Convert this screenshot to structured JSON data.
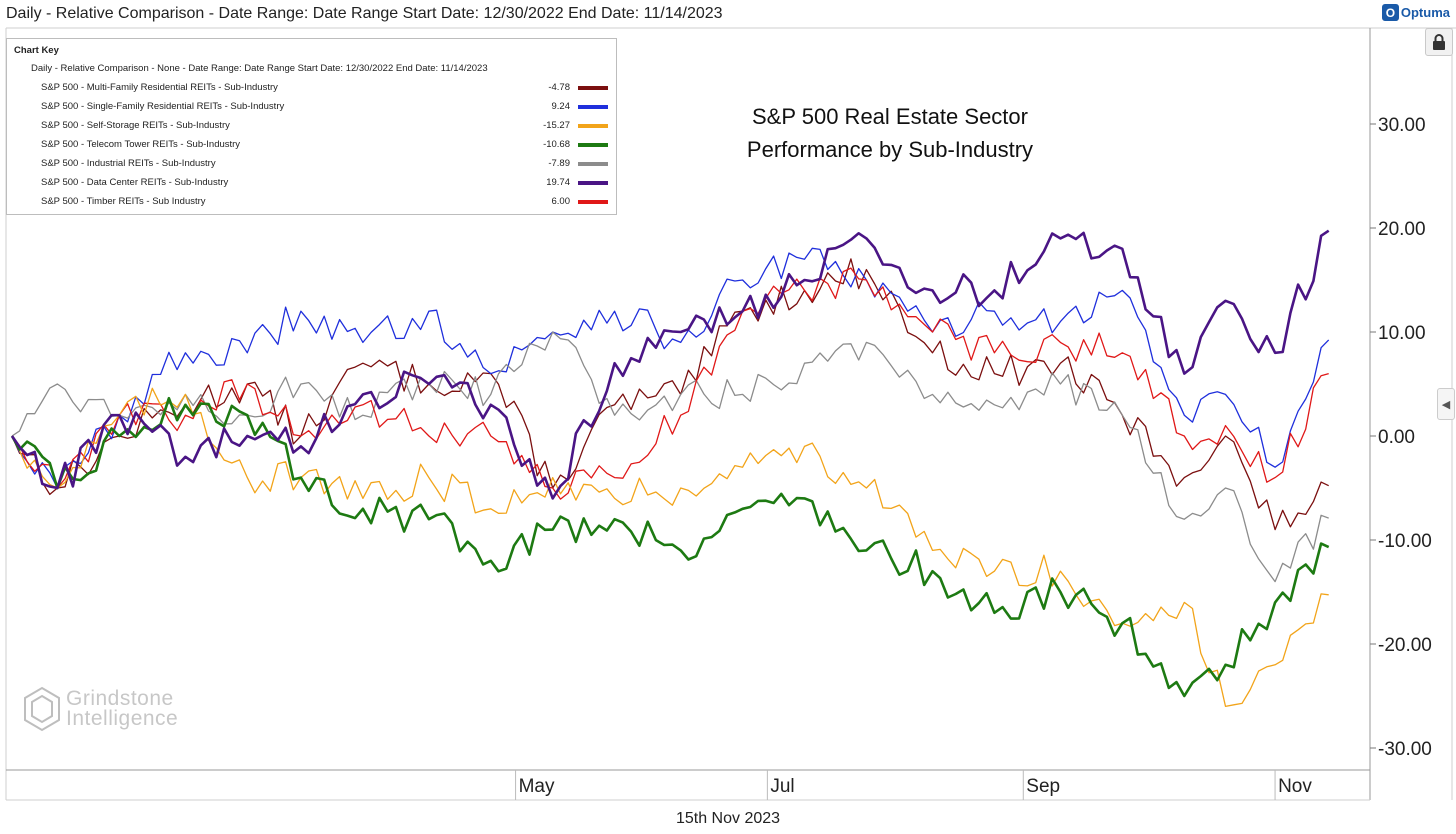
{
  "header": {
    "title": "Daily - Relative Comparison - Date Range: Date Range  Start Date: 12/30/2022  End Date: 11/14/2023",
    "brand": "Optuma",
    "brand_icon": "optuma-logo-icon"
  },
  "toolbar": {
    "lock_icon": "lock-icon",
    "side_handle_icon": "chevron-left-icon"
  },
  "chart_key": {
    "heading": "Chart Key",
    "subtitle": "Daily - Relative Comparison - None - Date Range: Date Range  Start Date: 12/30/2022  End Date: 11/14/2023",
    "entries": [
      {
        "label": "S&P 500 - Multi-Family Residential REITs - Sub-Industry",
        "value": "-4.78",
        "color": "#7b0f0f"
      },
      {
        "label": "S&P 500 - Single-Family Residential REITs - Sub-Industry",
        "value": "9.24",
        "color": "#1f2fdc"
      },
      {
        "label": "S&P 500 - Self-Storage REITs - Sub-Industry",
        "value": "-15.27",
        "color": "#f2a41a"
      },
      {
        "label": "S&P 500 - Telecom Tower REITs - Sub-Industry",
        "value": "-10.68",
        "color": "#1d7a12"
      },
      {
        "label": "S&P 500 - Industrial REITs - Sub-Industry",
        "value": "-7.89",
        "color": "#8c8c8c"
      },
      {
        "label": "S&P 500 - Data Center REITs - Sub-Industry",
        "value": "19.74",
        "color": "#4a1585"
      },
      {
        "label": "S&P 500 - Timber REITs - Sub Industry",
        "value": "6.00",
        "color": "#e01818"
      }
    ]
  },
  "watermark": {
    "line1": "Grindstone",
    "line2": "Intelligence"
  },
  "footer": {
    "date": "15th Nov 2023"
  },
  "chart_data": {
    "type": "line",
    "title": "S&P 500 Real Estate Sector Performance by Sub-Industry",
    "title_lines": [
      "S&P 500 Real Estate Sector",
      "Performance by Sub-Industry"
    ],
    "xlabel": "",
    "ylabel": "",
    "x_ticks": [
      "May",
      "Jul",
      "Sep",
      "Nov"
    ],
    "x_tick_dates": [
      "2023-05-01",
      "2023-07-01",
      "2023-09-01",
      "2023-11-01"
    ],
    "x_range": [
      "2022-12-30",
      "2023-11-24"
    ],
    "ylim": [
      -32,
      40
    ],
    "y_ticks": [
      30,
      20,
      10,
      0,
      -10,
      -20,
      -30
    ],
    "y_tick_labels": [
      "30.00",
      "20.00",
      "10.00",
      "0.00",
      "-10.00",
      "-20.00",
      "-30.00"
    ],
    "grid": false,
    "axis_position": "right",
    "series": [
      {
        "name": "S&P 500 - Multi-Family Residential REITs - Sub-Industry",
        "color": "#7b0f0f",
        "width": 1.3,
        "x": [
          "2022-12-30",
          "2023-01-10",
          "2023-01-25",
          "2023-02-10",
          "2023-02-25",
          "2023-03-10",
          "2023-03-25",
          "2023-04-10",
          "2023-04-25",
          "2023-05-10",
          "2023-05-25",
          "2023-06-10",
          "2023-06-25",
          "2023-07-10",
          "2023-07-25",
          "2023-08-10",
          "2023-08-25",
          "2023-09-10",
          "2023-09-25",
          "2023-10-10",
          "2023-10-20",
          "2023-11-01",
          "2023-11-14"
        ],
        "values": [
          0,
          -5,
          0,
          3,
          5,
          0,
          7,
          5,
          6,
          -5,
          3,
          4,
          12,
          14,
          16,
          8,
          6,
          7,
          2,
          -4,
          0,
          -9,
          -4.78
        ]
      },
      {
        "name": "S&P 500 - Single-Family Residential REITs - Sub-Industry",
        "color": "#1f2fdc",
        "width": 1.3,
        "x": [
          "2022-12-30",
          "2023-01-10",
          "2023-01-25",
          "2023-02-10",
          "2023-02-25",
          "2023-03-10",
          "2023-03-25",
          "2023-04-10",
          "2023-04-25",
          "2023-05-10",
          "2023-05-25",
          "2023-06-10",
          "2023-06-25",
          "2023-07-10",
          "2023-07-25",
          "2023-08-10",
          "2023-08-25",
          "2023-09-10",
          "2023-09-25",
          "2023-10-10",
          "2023-10-20",
          "2023-11-01",
          "2023-11-14"
        ],
        "values": [
          0,
          -5,
          2,
          8,
          8,
          12,
          9,
          12,
          6,
          10,
          12,
          9,
          15,
          17,
          15,
          10,
          12,
          11,
          14,
          2,
          4,
          -3,
          9.24
        ]
      },
      {
        "name": "S&P 500 - Self-Storage REITs - Sub-Industry",
        "color": "#f2a41a",
        "width": 1.3,
        "x": [
          "2022-12-30",
          "2023-01-10",
          "2023-01-25",
          "2023-02-10",
          "2023-02-25",
          "2023-03-10",
          "2023-03-25",
          "2023-04-10",
          "2023-04-25",
          "2023-05-10",
          "2023-05-25",
          "2023-06-10",
          "2023-06-25",
          "2023-07-10",
          "2023-07-25",
          "2023-08-10",
          "2023-08-25",
          "2023-09-10",
          "2023-09-25",
          "2023-10-10",
          "2023-10-20",
          "2023-11-01",
          "2023-11-14"
        ],
        "values": [
          0,
          -5,
          2,
          4,
          -4,
          -4,
          -6,
          -4,
          -7,
          -4,
          -6,
          -5,
          -3,
          -1,
          -5,
          -11,
          -13,
          -13,
          -18,
          -16,
          -26,
          -22,
          -15.27
        ]
      },
      {
        "name": "S&P 500 - Telecom Tower REITs - Sub-Industry",
        "color": "#1d7a12",
        "width": 2.6,
        "x": [
          "2022-12-30",
          "2023-01-10",
          "2023-01-25",
          "2023-02-10",
          "2023-02-25",
          "2023-03-10",
          "2023-03-25",
          "2023-04-10",
          "2023-04-25",
          "2023-05-10",
          "2023-05-25",
          "2023-06-10",
          "2023-06-25",
          "2023-07-10",
          "2023-07-25",
          "2023-08-10",
          "2023-08-25",
          "2023-09-10",
          "2023-09-25",
          "2023-10-10",
          "2023-10-20",
          "2023-11-01",
          "2023-11-14"
        ],
        "values": [
          0,
          -5,
          0,
          3,
          2,
          -4,
          -7,
          -8,
          -12,
          -9,
          -8,
          -11,
          -7,
          -6,
          -11,
          -13,
          -17,
          -15,
          -18,
          -25,
          -22,
          -16,
          -10.68
        ]
      },
      {
        "name": "S&P 500 - Industrial REITs - Sub-Industry",
        "color": "#8c8c8c",
        "width": 1.3,
        "x": [
          "2022-12-30",
          "2023-01-10",
          "2023-01-25",
          "2023-02-10",
          "2023-02-25",
          "2023-03-10",
          "2023-03-25",
          "2023-04-10",
          "2023-04-25",
          "2023-05-10",
          "2023-05-25",
          "2023-06-10",
          "2023-06-25",
          "2023-07-10",
          "2023-07-25",
          "2023-08-10",
          "2023-08-25",
          "2023-09-10",
          "2023-09-25",
          "2023-10-10",
          "2023-10-20",
          "2023-11-01",
          "2023-11-14"
        ],
        "values": [
          0,
          5,
          2,
          4,
          2,
          5,
          2,
          5,
          4,
          10,
          2,
          4,
          4,
          7,
          9,
          4,
          3,
          5,
          2,
          -8,
          -5,
          -14,
          -7.89
        ]
      },
      {
        "name": "S&P 500 - Data Center REITs - Sub-Industry",
        "color": "#4a1585",
        "width": 2.6,
        "x": [
          "2022-12-30",
          "2023-01-10",
          "2023-01-25",
          "2023-02-10",
          "2023-02-25",
          "2023-03-10",
          "2023-03-25",
          "2023-04-10",
          "2023-04-25",
          "2023-05-10",
          "2023-05-25",
          "2023-06-10",
          "2023-06-25",
          "2023-07-10",
          "2023-07-25",
          "2023-08-10",
          "2023-08-25",
          "2023-09-10",
          "2023-09-25",
          "2023-10-10",
          "2023-10-20",
          "2023-11-01",
          "2023-11-14"
        ],
        "values": [
          0,
          -5,
          2,
          -2,
          0,
          -1,
          4,
          5,
          3,
          -6,
          7,
          10,
          12,
          15,
          19,
          14,
          14,
          19,
          18,
          6,
          13,
          8,
          19.74
        ]
      },
      {
        "name": "S&P 500 - Timber REITs - Sub Industry",
        "color": "#e01818",
        "width": 1.3,
        "x": [
          "2022-12-30",
          "2023-01-10",
          "2023-01-25",
          "2023-02-10",
          "2023-02-25",
          "2023-03-10",
          "2023-03-25",
          "2023-04-10",
          "2023-04-25",
          "2023-05-10",
          "2023-05-25",
          "2023-06-10",
          "2023-06-25",
          "2023-07-10",
          "2023-07-25",
          "2023-08-10",
          "2023-08-25",
          "2023-09-10",
          "2023-09-25",
          "2023-10-10",
          "2023-10-20",
          "2023-11-01",
          "2023-11-14"
        ],
        "values": [
          0,
          -5,
          2,
          2,
          5,
          0,
          3,
          0,
          0,
          -5,
          -4,
          2,
          12,
          14,
          15,
          10,
          8,
          9,
          8,
          0,
          1,
          -4,
          6.0
        ]
      }
    ]
  }
}
